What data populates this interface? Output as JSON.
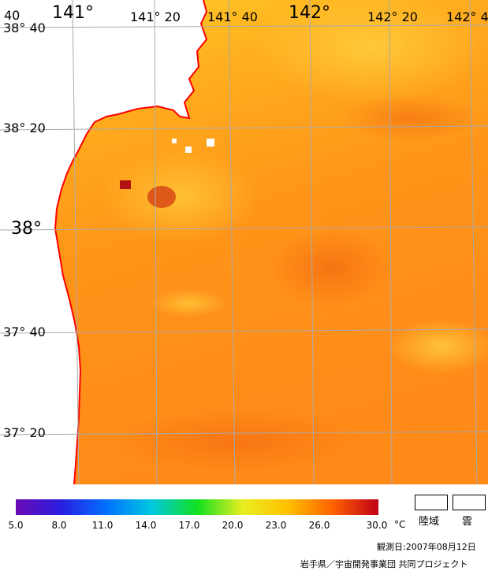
{
  "map": {
    "longitude_labels": [
      {
        "text": "40",
        "size": "small"
      },
      {
        "text": "141°",
        "size": "big"
      },
      {
        "text": "141° 20",
        "size": "small"
      },
      {
        "text": "141° 40",
        "size": "small"
      },
      {
        "text": "142°",
        "size": "big"
      },
      {
        "text": "142° 20",
        "size": "small"
      },
      {
        "text": "142° 4",
        "size": "small"
      }
    ],
    "latitude_labels": [
      {
        "text": "38° 40",
        "size": "small"
      },
      {
        "text": "38° 20",
        "size": "small"
      },
      {
        "text": "38°",
        "size": "big"
      },
      {
        "text": "37° 40",
        "size": "small"
      },
      {
        "text": "37° 20",
        "size": "small"
      }
    ],
    "colors": {
      "coastline": "#ff0000",
      "grid": "#aaaaaa",
      "land": "#ffffff"
    }
  },
  "colorbar": {
    "ticks": [
      "5.0",
      "8.0",
      "11.0",
      "14.0",
      "17.0",
      "20.0",
      "23.0",
      "26.0",
      "30.0"
    ],
    "unit": "°C",
    "range": [
      5.0,
      30.0
    ],
    "colors": [
      "#6a0ab5",
      "#2a1ee0",
      "#0070ff",
      "#00c8e0",
      "#10e020",
      "#e8ee20",
      "#ffc000",
      "#ff6000",
      "#c00018"
    ]
  },
  "legend": {
    "land_label": "陸域",
    "cloud_label": "雲"
  },
  "footer": {
    "observation_date": "観測日:2007年08月12日",
    "credit": "岩手県／宇宙開発事業団 共同プロジェクト"
  }
}
